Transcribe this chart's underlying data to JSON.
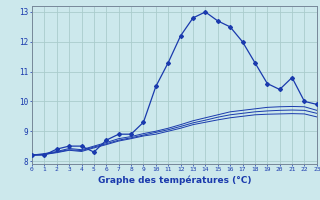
{
  "xlabel": "Graphe des températures (°C)",
  "bg_color": "#cce8ec",
  "grid_color": "#aacccc",
  "line_color": "#1a3aad",
  "hours": [
    0,
    1,
    2,
    3,
    4,
    5,
    6,
    7,
    8,
    9,
    10,
    11,
    12,
    13,
    14,
    15,
    16,
    17,
    18,
    19,
    20,
    21,
    22,
    23
  ],
  "temp_main": [
    8.2,
    8.2,
    8.4,
    8.5,
    8.5,
    8.3,
    8.7,
    8.9,
    8.9,
    9.3,
    10.5,
    11.3,
    12.2,
    12.8,
    13.0,
    12.7,
    12.5,
    12.0,
    11.3,
    10.6,
    10.4,
    10.8,
    10.0,
    9.9
  ],
  "temp_line2": [
    8.2,
    8.25,
    8.32,
    8.42,
    8.38,
    8.5,
    8.62,
    8.75,
    8.82,
    8.92,
    9.0,
    9.1,
    9.22,
    9.35,
    9.45,
    9.55,
    9.65,
    9.7,
    9.75,
    9.8,
    9.82,
    9.83,
    9.82,
    9.7
  ],
  "temp_line3": [
    8.2,
    8.22,
    8.3,
    8.38,
    8.35,
    8.47,
    8.58,
    8.7,
    8.78,
    8.87,
    8.96,
    9.05,
    9.16,
    9.28,
    9.37,
    9.47,
    9.55,
    9.6,
    9.65,
    9.68,
    9.7,
    9.71,
    9.7,
    9.6
  ],
  "temp_line4": [
    8.2,
    8.22,
    8.28,
    8.36,
    8.32,
    8.44,
    8.55,
    8.67,
    8.75,
    8.84,
    8.9,
    9.0,
    9.1,
    9.22,
    9.3,
    9.38,
    9.45,
    9.5,
    9.55,
    9.57,
    9.58,
    9.59,
    9.58,
    9.48
  ],
  "ylim": [
    7.9,
    13.2
  ],
  "yticks": [
    8,
    9,
    10,
    11,
    12,
    13
  ],
  "xlim": [
    0,
    23
  ]
}
